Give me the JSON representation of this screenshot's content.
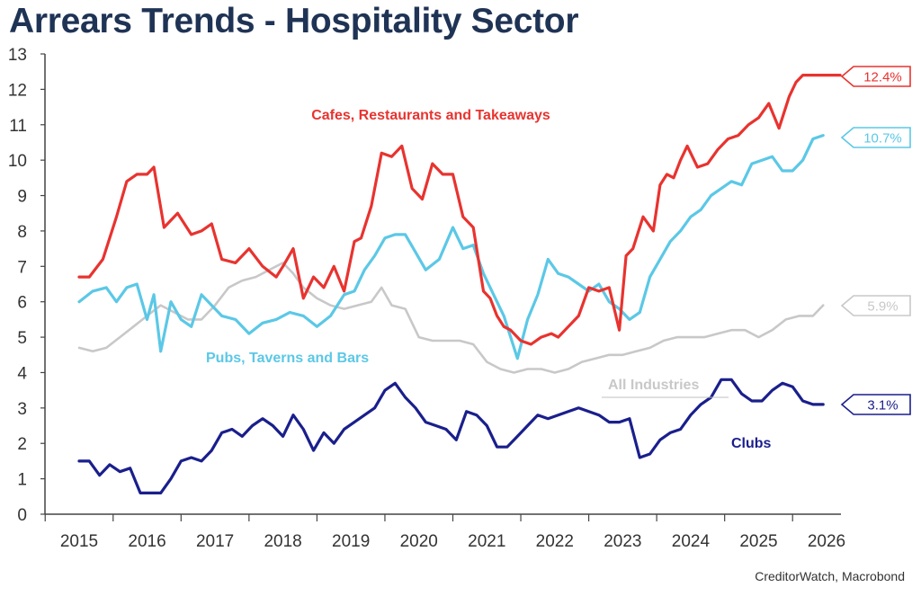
{
  "title": "Arrears Trends - Hospitality Sector",
  "source": "CreditorWatch, Macrobond",
  "colors": {
    "cafes": "#e8332f",
    "pubs": "#5bc8e6",
    "all": "#c8c8c8",
    "clubs": "#1a1f8c",
    "axis": "#444444"
  },
  "chart_data": {
    "type": "line",
    "title": "Arrears Trends - Hospitality Sector",
    "xlabel": "",
    "ylabel": "",
    "xlim": [
      2015,
      2026
    ],
    "ylim": [
      0,
      13
    ],
    "yticks": [
      "0",
      "1",
      "2",
      "3",
      "4",
      "5",
      "6",
      "7",
      "8",
      "9",
      "10",
      "11",
      "12",
      "13"
    ],
    "xticks": [
      "2015",
      "2016",
      "2017",
      "2018",
      "2019",
      "2020",
      "2021",
      "2022",
      "2023",
      "2024",
      "2025",
      "2026"
    ],
    "grid": false,
    "series": [
      {
        "key": "cafes",
        "name": "Cafes, Restaurants and Takeaways",
        "end_label": "12.4%",
        "x": [
          2015.0,
          2015.15,
          2015.35,
          2015.55,
          2015.7,
          2015.85,
          2016.0,
          2016.1,
          2016.25,
          2016.45,
          2016.65,
          2016.8,
          2016.95,
          2017.1,
          2017.3,
          2017.5,
          2017.7,
          2017.9,
          2018.0,
          2018.15,
          2018.3,
          2018.45,
          2018.6,
          2018.75,
          2018.9,
          2019.05,
          2019.15,
          2019.3,
          2019.45,
          2019.6,
          2019.75,
          2019.9,
          2020.05,
          2020.2,
          2020.35,
          2020.5,
          2020.65,
          2020.8,
          2020.95,
          2021.05,
          2021.15,
          2021.25,
          2021.35,
          2021.5,
          2021.65,
          2021.8,
          2021.95,
          2022.05,
          2022.2,
          2022.35,
          2022.5,
          2022.65,
          2022.8,
          2022.95,
          2023.05,
          2023.15,
          2023.3,
          2023.45,
          2023.55,
          2023.65,
          2023.75,
          2023.85,
          2023.95,
          2024.1,
          2024.25,
          2024.4,
          2024.55,
          2024.7,
          2024.85,
          2025.0,
          2025.15,
          2025.3,
          2025.45,
          2025.55,
          2025.65,
          2025.75,
          2025.85,
          2025.95,
          2026.05,
          2026.15,
          2026.2
        ],
        "values": [
          6.7,
          6.7,
          7.2,
          8.4,
          9.4,
          9.6,
          9.6,
          9.8,
          8.1,
          8.5,
          7.9,
          8.0,
          8.2,
          7.2,
          7.1,
          7.5,
          7.0,
          6.7,
          7.0,
          7.5,
          6.1,
          6.7,
          6.4,
          7.0,
          6.3,
          7.7,
          7.8,
          8.7,
          10.2,
          10.1,
          10.4,
          9.2,
          8.9,
          9.9,
          9.6,
          9.6,
          8.4,
          8.1,
          6.3,
          6.1,
          5.6,
          5.3,
          5.2,
          4.9,
          4.8,
          5.0,
          5.1,
          5.0,
          5.3,
          5.6,
          6.4,
          6.3,
          6.4,
          5.2,
          7.3,
          7.5,
          8.4,
          8.0,
          9.3,
          9.6,
          9.5,
          10.0,
          10.4,
          9.8,
          9.9,
          10.3,
          10.6,
          10.7,
          11.0,
          11.2,
          11.6,
          10.9,
          11.8,
          12.2,
          12.4,
          12.4,
          12.4,
          12.4,
          12.4,
          12.4,
          12.4
        ],
        "note": "endpoint value shown as 12.4%"
      },
      {
        "key": "pubs",
        "name": "Pubs, Taverns and Bars",
        "end_label": "10.7%",
        "x": [
          2015.0,
          2015.2,
          2015.4,
          2015.55,
          2015.7,
          2015.85,
          2016.0,
          2016.1,
          2016.2,
          2016.35,
          2016.5,
          2016.65,
          2016.8,
          2016.95,
          2017.1,
          2017.3,
          2017.5,
          2017.7,
          2017.9,
          2018.1,
          2018.3,
          2018.5,
          2018.7,
          2018.9,
          2019.05,
          2019.2,
          2019.35,
          2019.5,
          2019.65,
          2019.8,
          2019.95,
          2020.1,
          2020.3,
          2020.5,
          2020.65,
          2020.8,
          2020.95,
          2021.1,
          2021.25,
          2021.45,
          2021.6,
          2021.75,
          2021.9,
          2022.05,
          2022.2,
          2022.35,
          2022.5,
          2022.65,
          2022.8,
          2022.95,
          2023.1,
          2023.25,
          2023.4,
          2023.55,
          2023.7,
          2023.85,
          2024.0,
          2024.15,
          2024.3,
          2024.45,
          2024.6,
          2024.75,
          2024.9,
          2025.05,
          2025.2,
          2025.35,
          2025.5,
          2025.65,
          2025.8,
          2025.95
        ],
        "values": [
          6.0,
          6.3,
          6.4,
          6.0,
          6.4,
          6.5,
          5.5,
          6.2,
          4.6,
          6.0,
          5.5,
          5.3,
          6.2,
          5.9,
          5.6,
          5.5,
          5.1,
          5.4,
          5.5,
          5.7,
          5.6,
          5.3,
          5.6,
          6.2,
          6.3,
          6.9,
          7.3,
          7.8,
          7.9,
          7.9,
          7.4,
          6.9,
          7.2,
          8.1,
          7.5,
          7.6,
          6.8,
          6.2,
          5.6,
          4.4,
          5.5,
          6.2,
          7.2,
          6.8,
          6.7,
          6.5,
          6.3,
          6.5,
          6.0,
          5.8,
          5.5,
          5.7,
          6.7,
          7.2,
          7.7,
          8.0,
          8.4,
          8.6,
          9.0,
          9.2,
          9.4,
          9.3,
          9.9,
          10.0,
          10.1,
          9.7,
          9.7,
          10.0,
          10.6,
          10.7
        ],
        "note": "values approximate; endpoint 10.7%"
      },
      {
        "key": "all",
        "name": "All Industries",
        "end_label": "5.9%",
        "x": [
          2015.0,
          2015.2,
          2015.4,
          2015.6,
          2015.8,
          2016.0,
          2016.2,
          2016.4,
          2016.6,
          2016.8,
          2017.0,
          2017.2,
          2017.4,
          2017.6,
          2017.8,
          2018.0,
          2018.15,
          2018.3,
          2018.5,
          2018.7,
          2018.9,
          2019.1,
          2019.3,
          2019.45,
          2019.6,
          2019.8,
          2020.0,
          2020.2,
          2020.4,
          2020.6,
          2020.8,
          2021.0,
          2021.2,
          2021.4,
          2021.6,
          2021.8,
          2022.0,
          2022.2,
          2022.4,
          2022.6,
          2022.8,
          2023.0,
          2023.2,
          2023.4,
          2023.6,
          2023.8,
          2024.0,
          2024.2,
          2024.4,
          2024.6,
          2024.8,
          2025.0,
          2025.2,
          2025.4,
          2025.6,
          2025.8,
          2025.95
        ],
        "values": [
          4.7,
          4.6,
          4.7,
          5.0,
          5.3,
          5.6,
          5.9,
          5.7,
          5.5,
          5.5,
          5.9,
          6.4,
          6.6,
          6.7,
          6.9,
          7.1,
          6.8,
          6.4,
          6.1,
          5.9,
          5.8,
          5.9,
          6.0,
          6.4,
          5.9,
          5.8,
          5.0,
          4.9,
          4.9,
          4.9,
          4.8,
          4.3,
          4.1,
          4.0,
          4.1,
          4.1,
          4.0,
          4.1,
          4.3,
          4.4,
          4.5,
          4.5,
          4.6,
          4.7,
          4.9,
          5.0,
          5.0,
          5.0,
          5.1,
          5.2,
          5.2,
          5.0,
          5.2,
          5.5,
          5.6,
          5.6,
          5.9
        ],
        "note": "values approximate; endpoint 5.9%"
      },
      {
        "key": "clubs",
        "name": "Clubs",
        "end_label": "3.1%",
        "x": [
          2015.0,
          2015.15,
          2015.3,
          2015.45,
          2015.6,
          2015.75,
          2015.9,
          2016.05,
          2016.2,
          2016.35,
          2016.5,
          2016.65,
          2016.8,
          2016.95,
          2017.1,
          2017.25,
          2017.4,
          2017.55,
          2017.7,
          2017.85,
          2018.0,
          2018.15,
          2018.3,
          2018.45,
          2018.6,
          2018.75,
          2018.9,
          2019.05,
          2019.2,
          2019.35,
          2019.5,
          2019.65,
          2019.8,
          2019.95,
          2020.1,
          2020.25,
          2020.4,
          2020.55,
          2020.7,
          2020.85,
          2021.0,
          2021.15,
          2021.3,
          2021.45,
          2021.6,
          2021.75,
          2021.9,
          2022.05,
          2022.2,
          2022.35,
          2022.5,
          2022.65,
          2022.8,
          2022.95,
          2023.1,
          2023.25,
          2023.4,
          2023.55,
          2023.7,
          2023.85,
          2024.0,
          2024.15,
          2024.3,
          2024.45,
          2024.6,
          2024.75,
          2024.9,
          2025.05,
          2025.2,
          2025.35,
          2025.5,
          2025.65,
          2025.8,
          2025.95
        ],
        "values": [
          1.5,
          1.5,
          1.1,
          1.4,
          1.2,
          1.3,
          0.6,
          0.6,
          0.6,
          1.0,
          1.5,
          1.6,
          1.5,
          1.8,
          2.3,
          2.4,
          2.2,
          2.5,
          2.7,
          2.5,
          2.2,
          2.8,
          2.4,
          1.8,
          2.3,
          2.0,
          2.4,
          2.6,
          2.8,
          3.0,
          3.5,
          3.7,
          3.3,
          3.0,
          2.6,
          2.5,
          2.4,
          2.1,
          2.9,
          2.8,
          2.5,
          1.9,
          1.9,
          2.2,
          2.5,
          2.8,
          2.7,
          2.8,
          2.9,
          3.0,
          2.9,
          2.8,
          2.6,
          2.6,
          2.7,
          1.6,
          1.7,
          2.1,
          2.3,
          2.4,
          2.8,
          3.1,
          3.3,
          3.8,
          3.8,
          3.4,
          3.2,
          3.2,
          3.5,
          3.7,
          3.6,
          3.2,
          3.1,
          3.1
        ],
        "note": "values approximate; endpoint 3.1%"
      }
    ],
    "annotations": [
      "Cafes, Restaurants and Takeaways",
      "Pubs, Taverns and Bars",
      "All Industries",
      "Clubs"
    ]
  }
}
